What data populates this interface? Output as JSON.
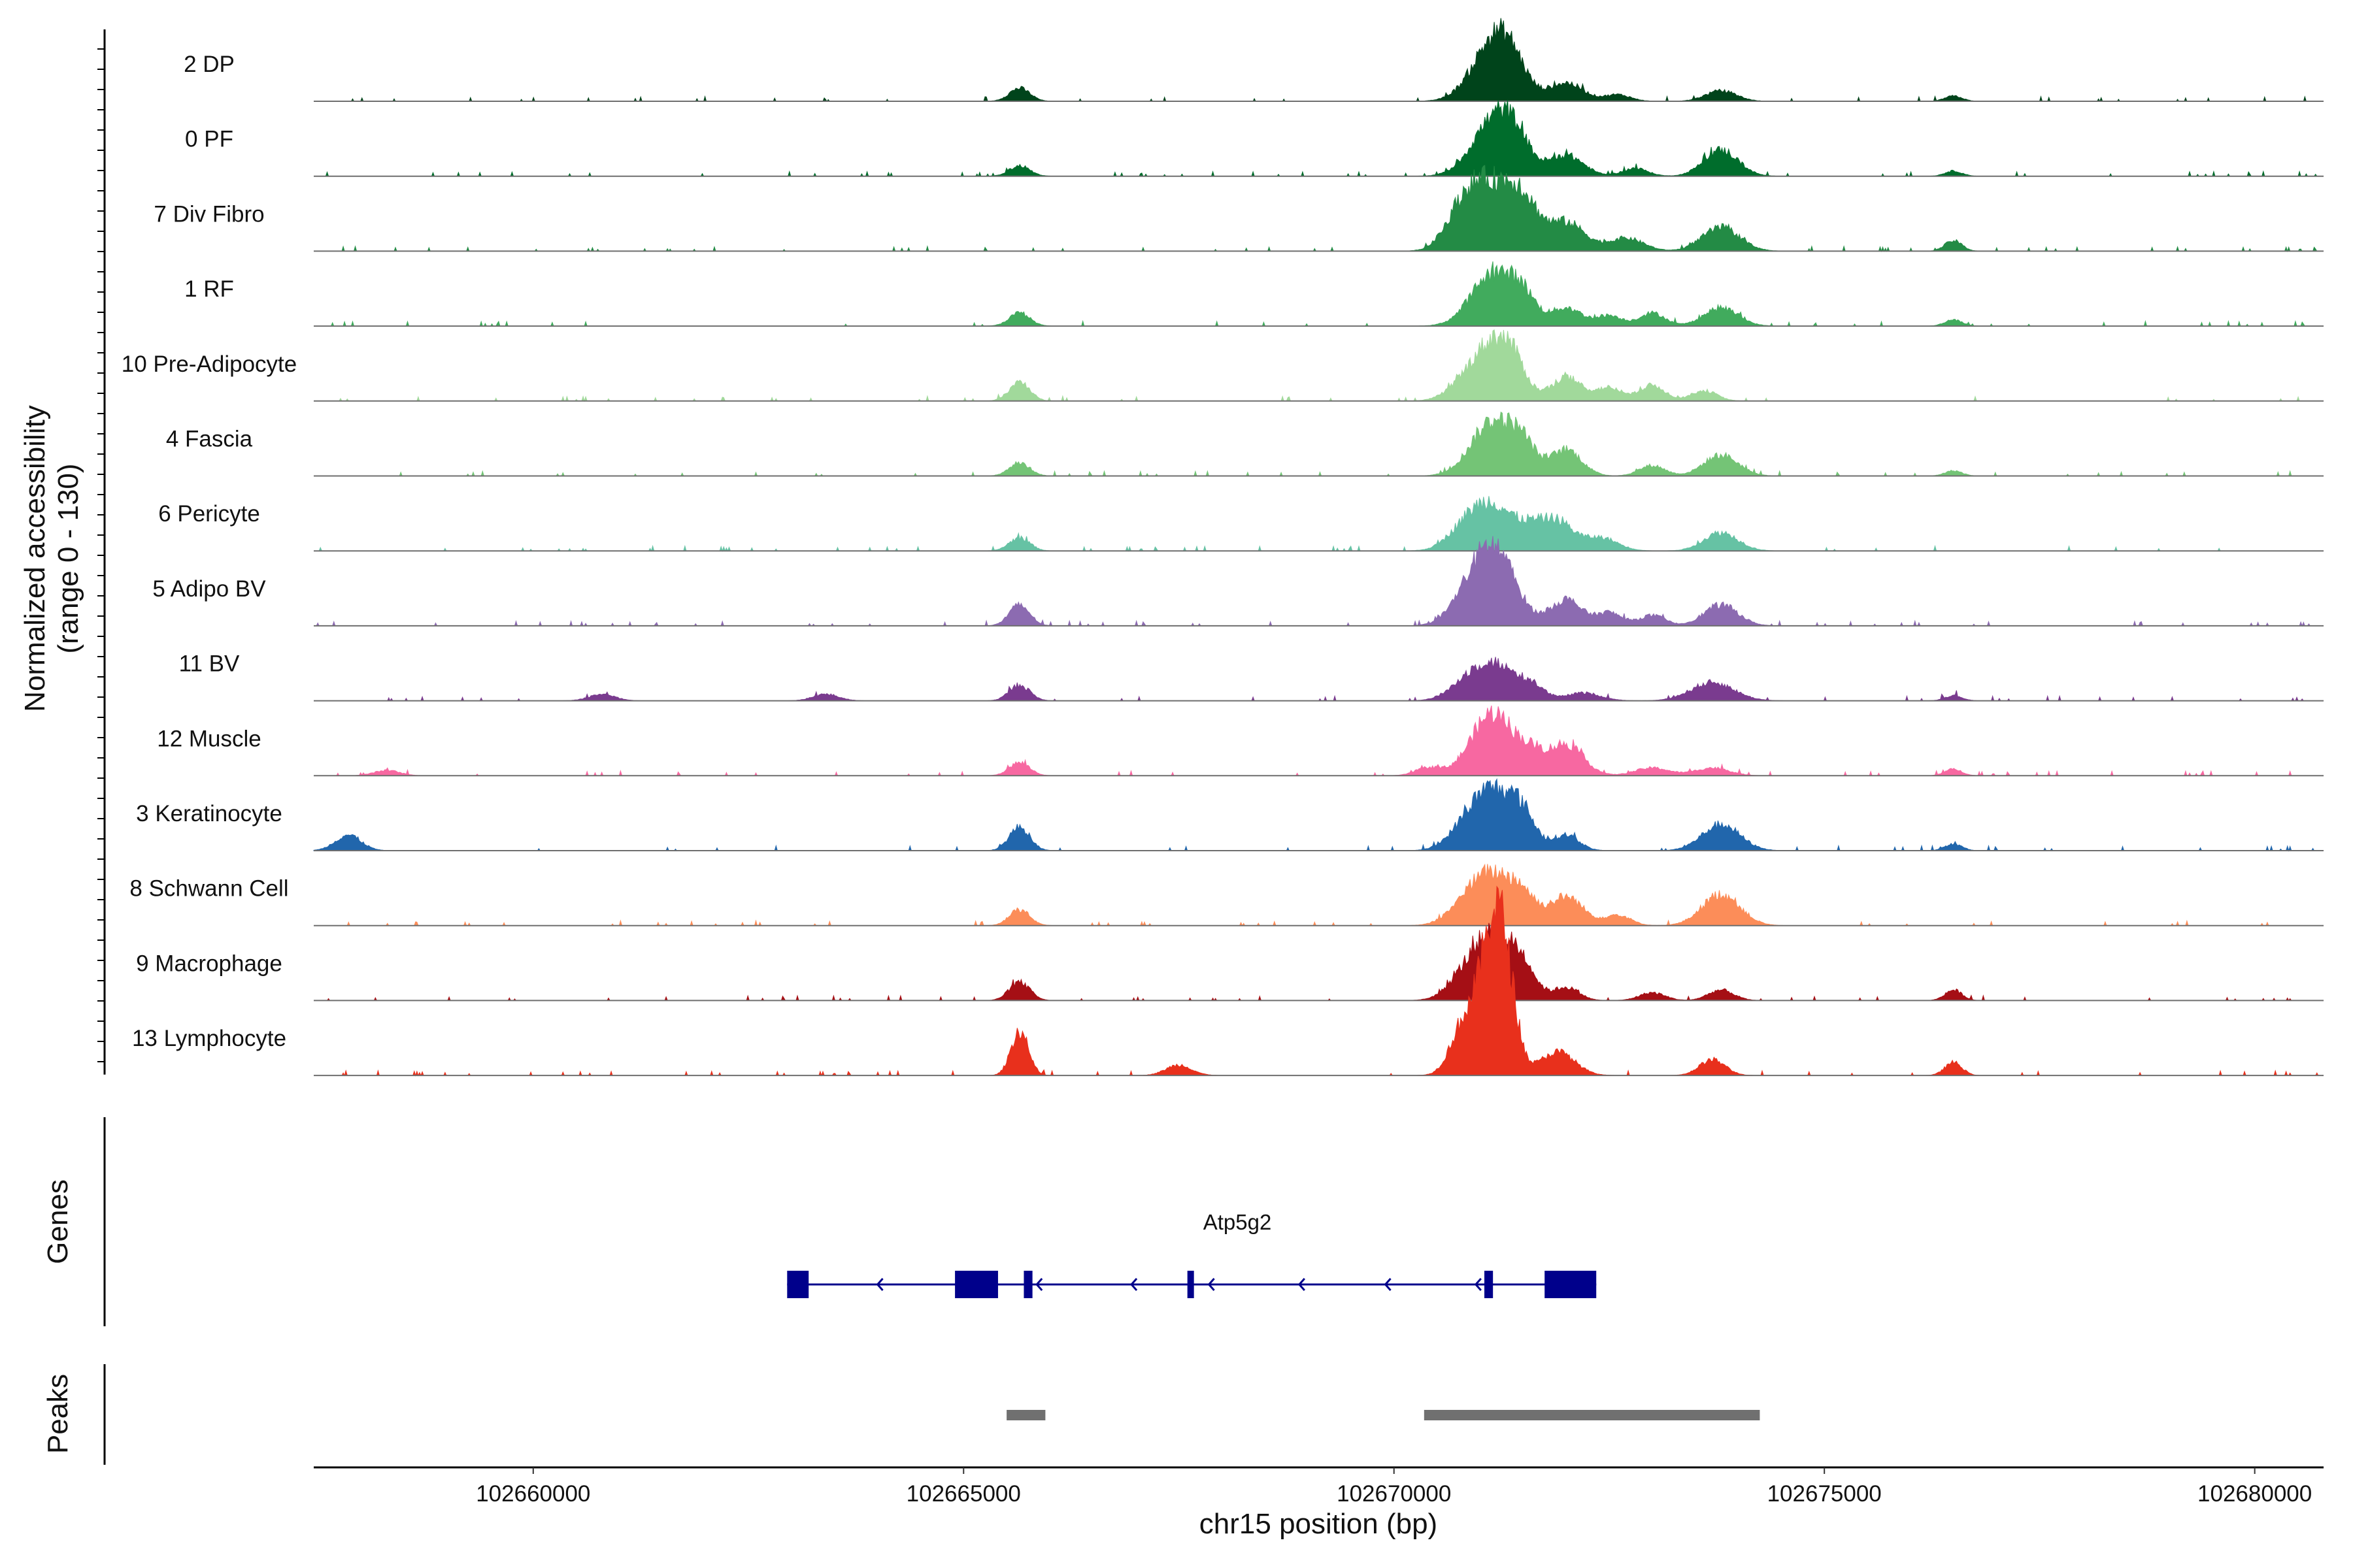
{
  "chart_data": {
    "type": "area",
    "title": "",
    "ylabel": "Normalized accessibility\n(range 0 - 130)",
    "ylim": [
      0,
      130
    ],
    "xlabel": "chr15 position (bp)",
    "xlim": [
      102657450,
      102680800
    ],
    "xticks": [
      102660000,
      102665000,
      102670000,
      102675000,
      102680000
    ],
    "xtick_labels": [
      "102660000",
      "102665000",
      "102670000",
      "102675000",
      "102680000"
    ],
    "genes_label": "Genes",
    "peaks_label": "Peaks",
    "grid": false,
    "tracks": [
      {
        "name": "2 DP",
        "color": "#00441b",
        "peaks": [
          [
            102665650,
            10,
            120
          ],
          [
            102671150,
            42,
            250
          ],
          [
            102671350,
            18,
            180
          ],
          [
            102672000,
            14,
            200
          ],
          [
            102672600,
            5,
            150
          ],
          [
            102673800,
            8,
            180
          ],
          [
            102676500,
            4,
            100
          ]
        ]
      },
      {
        "name": "0 PF",
        "color": "#006d2c",
        "peaks": [
          [
            102665650,
            8,
            120
          ],
          [
            102671150,
            40,
            250
          ],
          [
            102671400,
            20,
            180
          ],
          [
            102672000,
            16,
            200
          ],
          [
            102672800,
            6,
            150
          ],
          [
            102673800,
            20,
            200
          ],
          [
            102676500,
            4,
            100
          ]
        ]
      },
      {
        "name": "7 Div Fibro",
        "color": "#238b45",
        "peaks": [
          [
            102670800,
            28,
            200
          ],
          [
            102671150,
            45,
            250
          ],
          [
            102671500,
            30,
            180
          ],
          [
            102672000,
            22,
            220
          ],
          [
            102672700,
            10,
            200
          ],
          [
            102673800,
            18,
            220
          ],
          [
            102676500,
            8,
            100
          ]
        ]
      },
      {
        "name": "1 RF",
        "color": "#41ab5d",
        "peaks": [
          [
            102665650,
            10,
            120
          ],
          [
            102671150,
            40,
            250
          ],
          [
            102671500,
            18,
            150
          ],
          [
            102672000,
            14,
            180
          ],
          [
            102672500,
            8,
            150
          ],
          [
            102673000,
            10,
            150
          ],
          [
            102673800,
            14,
            200
          ],
          [
            102676500,
            5,
            100
          ]
        ]
      },
      {
        "name": "10 Pre-Adipocyte",
        "color": "#a1d99b",
        "peaks": [
          [
            102665650,
            14,
            120
          ],
          [
            102670800,
            10,
            200
          ],
          [
            102671150,
            42,
            220
          ],
          [
            102671400,
            18,
            150
          ],
          [
            102672000,
            18,
            180
          ],
          [
            102672500,
            10,
            150
          ],
          [
            102673000,
            12,
            150
          ],
          [
            102673600,
            8,
            150
          ]
        ]
      },
      {
        "name": "4 Fascia",
        "color": "#74c476",
        "peaks": [
          [
            102665650,
            10,
            120
          ],
          [
            102671150,
            42,
            250
          ],
          [
            102671500,
            18,
            150
          ],
          [
            102672000,
            20,
            180
          ],
          [
            102673000,
            8,
            150
          ],
          [
            102673800,
            16,
            200
          ],
          [
            102676500,
            4,
            100
          ]
        ]
      },
      {
        "name": "6 Pericyte",
        "color": "#66c2a4",
        "peaks": [
          [
            102665650,
            10,
            120
          ],
          [
            102670800,
            12,
            200
          ],
          [
            102671150,
            35,
            250
          ],
          [
            102671600,
            12,
            150
          ],
          [
            102671900,
            22,
            180
          ],
          [
            102672400,
            10,
            200
          ],
          [
            102673800,
            14,
            200
          ]
        ]
      },
      {
        "name": "5 Adipo BV",
        "color": "#8c6bb1",
        "peaks": [
          [
            102665650,
            16,
            120
          ],
          [
            102670800,
            10,
            200
          ],
          [
            102671150,
            60,
            250
          ],
          [
            102672000,
            20,
            180
          ],
          [
            102672500,
            10,
            150
          ],
          [
            102673000,
            8,
            150
          ],
          [
            102673800,
            16,
            200
          ]
        ]
      },
      {
        "name": "11 BV",
        "color": "#7a3b8f",
        "peaks": [
          [
            102660800,
            5,
            150
          ],
          [
            102663400,
            5,
            150
          ],
          [
            102665650,
            12,
            120
          ],
          [
            102670800,
            8,
            200
          ],
          [
            102671150,
            28,
            250
          ],
          [
            102671600,
            10,
            150
          ],
          [
            102672200,
            6,
            200
          ],
          [
            102673700,
            14,
            250
          ],
          [
            102676500,
            4,
            100
          ]
        ]
      },
      {
        "name": "12 Muscle",
        "color": "#f768a1",
        "peaks": [
          [
            102658300,
            4,
            150
          ],
          [
            102665650,
            10,
            120
          ],
          [
            102670400,
            6,
            150
          ],
          [
            102671150,
            48,
            250
          ],
          [
            102671600,
            12,
            150
          ],
          [
            102672000,
            24,
            200
          ],
          [
            102673000,
            6,
            200
          ],
          [
            102673700,
            6,
            200
          ],
          [
            102676500,
            5,
            100
          ]
        ]
      },
      {
        "name": "3 Keratinocyte",
        "color": "#2166ac",
        "peaks": [
          [
            102657850,
            12,
            150
          ],
          [
            102665650,
            18,
            120
          ],
          [
            102670800,
            10,
            200
          ],
          [
            102671150,
            45,
            250
          ],
          [
            102671500,
            20,
            150
          ],
          [
            102672000,
            12,
            150
          ],
          [
            102673800,
            20,
            220
          ],
          [
            102676500,
            5,
            100
          ]
        ]
      },
      {
        "name": "8 Schwann Cell",
        "color": "#fc8d59",
        "peaks": [
          [
            102665650,
            12,
            120
          ],
          [
            102670800,
            10,
            200
          ],
          [
            102671150,
            38,
            250
          ],
          [
            102671500,
            16,
            150
          ],
          [
            102672000,
            22,
            200
          ],
          [
            102672600,
            8,
            150
          ],
          [
            102673800,
            24,
            220
          ]
        ]
      },
      {
        "name": "9 Macrophage",
        "color": "#a50f15",
        "peaks": [
          [
            102665650,
            14,
            120
          ],
          [
            102670800,
            10,
            200
          ],
          [
            102671150,
            48,
            250
          ],
          [
            102671500,
            18,
            150
          ],
          [
            102672000,
            10,
            150
          ],
          [
            102673000,
            6,
            150
          ],
          [
            102673800,
            8,
            150
          ],
          [
            102676500,
            8,
            100
          ]
        ]
      },
      {
        "name": "13 Lymphocyte",
        "color": "#e8301c",
        "peaks": [
          [
            102665650,
            34,
            100
          ],
          [
            102667500,
            8,
            150
          ],
          [
            102670800,
            36,
            150
          ],
          [
            102671150,
            105,
            160
          ],
          [
            102671300,
            40,
            130
          ],
          [
            102671900,
            18,
            200
          ],
          [
            102673700,
            12,
            150
          ],
          [
            102676500,
            10,
            100
          ]
        ]
      }
    ],
    "gene": {
      "name": "Atp5g2",
      "strand": "-",
      "color": "#00008b",
      "start": 102662950,
      "end": 102672350,
      "exons": [
        [
          102662950,
          102663200
        ],
        [
          102664900,
          102665400
        ],
        [
          102665700,
          102665800
        ],
        [
          102667600,
          102667650
        ],
        [
          102671050,
          102671150
        ],
        [
          102671750,
          102672350
        ]
      ],
      "arrows": [
        102664000,
        102665850,
        102666950,
        102667850,
        102668900,
        102669900,
        102670950
      ]
    },
    "peak_regions": {
      "color": "#707070",
      "regions": [
        [
          102665500,
          102665950
        ],
        [
          102670350,
          102674250
        ]
      ]
    }
  }
}
